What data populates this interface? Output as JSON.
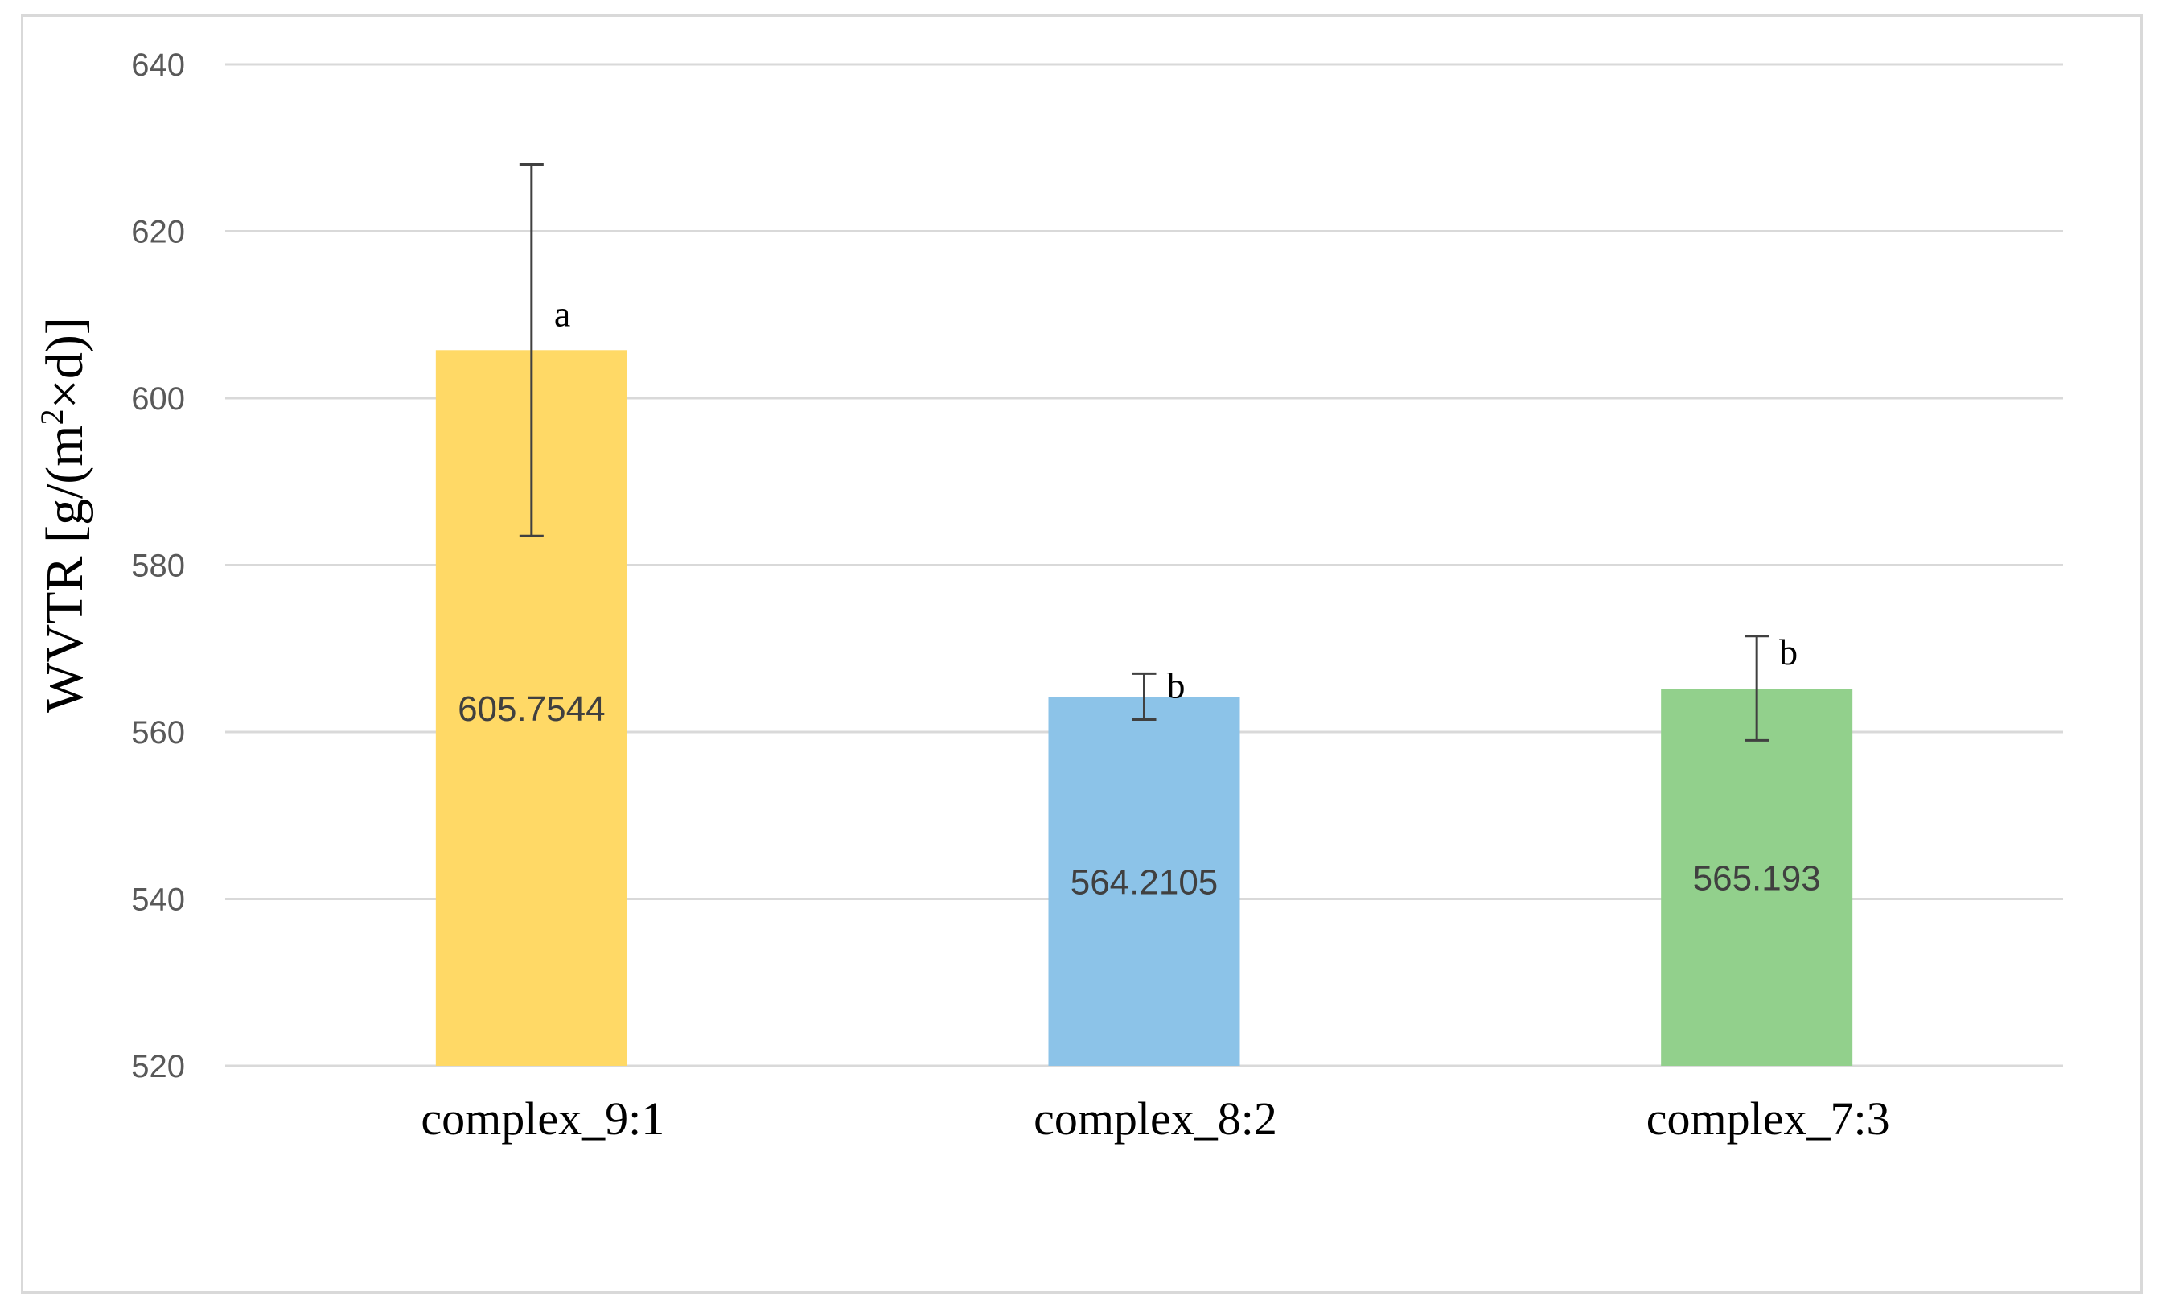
{
  "chart_data": {
    "type": "bar",
    "title": "",
    "xlabel": "",
    "ylabel": "WVTR [g/(m2×d)]",
    "ylabel_parts": {
      "prefix": "WVTR [g/(m",
      "superscript": "2",
      "suffix": "×d)]"
    },
    "ylim": [
      520,
      640
    ],
    "yticks": [
      520,
      540,
      560,
      580,
      600,
      620,
      640
    ],
    "grid": true,
    "legend": "none",
    "categories": [
      "complex_9:1",
      "complex_8:2",
      "complex_7:3"
    ],
    "values": [
      605.7544,
      564.2105,
      565.193
    ],
    "value_labels": [
      "605.7544",
      "564.2105",
      "565.193"
    ],
    "error_high": [
      628.0,
      567.0,
      571.5
    ],
    "error_low": [
      583.5,
      561.5,
      559.0
    ],
    "significance": [
      "a",
      "b",
      "b"
    ],
    "colors": [
      "#ffd966",
      "#8cc3e8",
      "#92d08c"
    ]
  }
}
